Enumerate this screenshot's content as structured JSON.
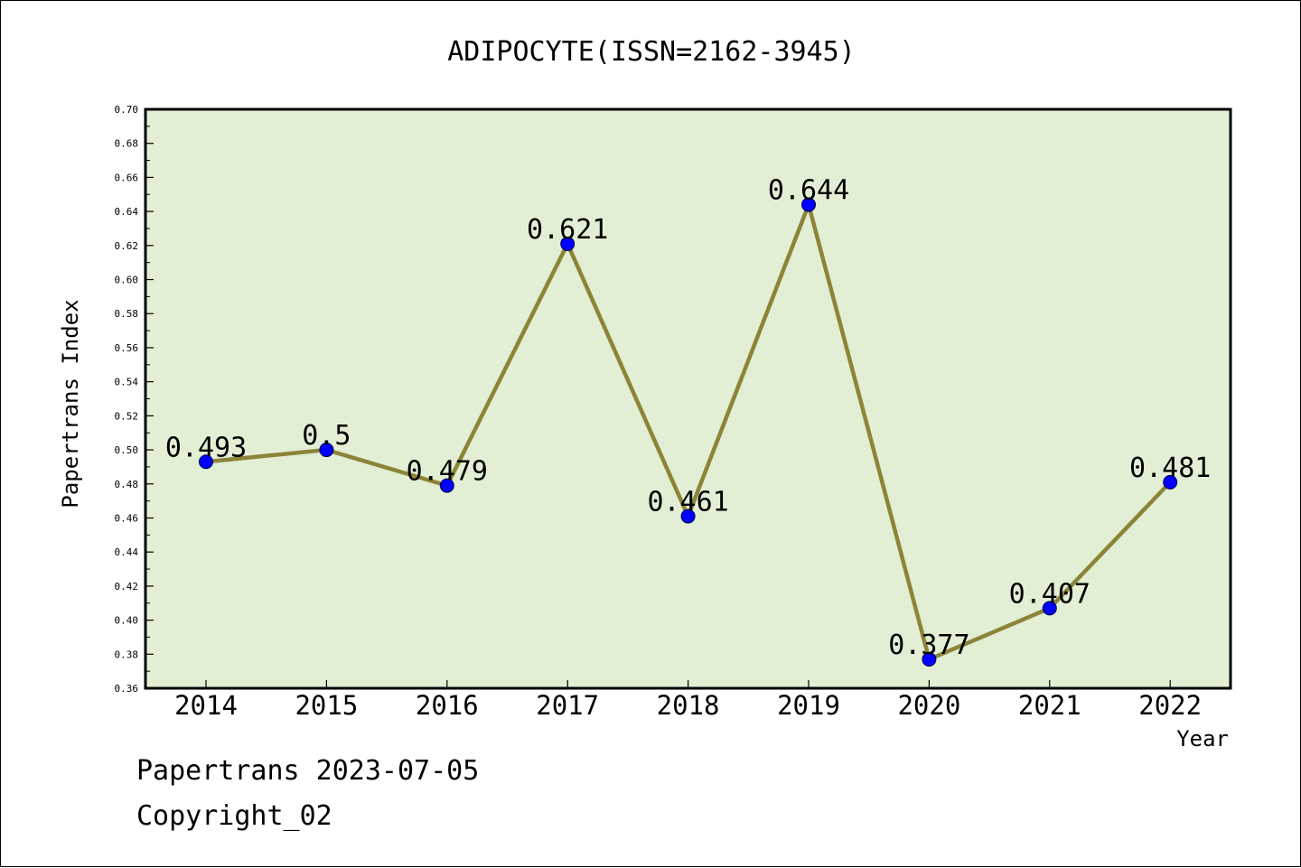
{
  "chart_data": {
    "type": "line",
    "title": "ADIPOCYTE(ISSN=2162-3945)",
    "xlabel": "Year",
    "ylabel": "Papertrans Index",
    "categories": [
      "2014",
      "2015",
      "2016",
      "2017",
      "2018",
      "2019",
      "2020",
      "2021",
      "2022"
    ],
    "series": [
      {
        "values": [
          0.493,
          0.5,
          0.479,
          0.621,
          0.461,
          0.644,
          0.377,
          0.407,
          0.481
        ],
        "labels": [
          "0.493",
          "0.5",
          "0.479",
          "0.621",
          "0.461",
          "0.644",
          "0.377",
          "0.407",
          "0.481"
        ]
      }
    ],
    "ylim": [
      0.36,
      0.7
    ],
    "yticks": [
      "0.36",
      "0.38",
      "0.40",
      "0.42",
      "0.44",
      "0.46",
      "0.48",
      "0.50",
      "0.52",
      "0.54",
      "0.56",
      "0.58",
      "0.60",
      "0.62",
      "0.64",
      "0.66",
      "0.68",
      "0.70"
    ],
    "grid": false,
    "legend": "none",
    "colors": {
      "plot_background": "#e2efd4",
      "line": "#8c8438",
      "marker": "#0000ff",
      "axis": "#000000"
    }
  },
  "footer": {
    "source": "Papertrans 2023-07-05",
    "copyright": "Copyright_02"
  }
}
